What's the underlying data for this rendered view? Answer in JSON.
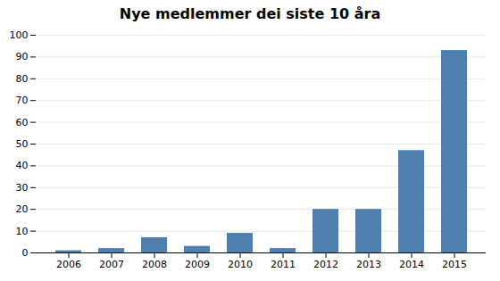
{
  "chart_data": {
    "type": "bar",
    "title": "Nye medlemmer dei siste 10 åra",
    "categories": [
      "2006",
      "2007",
      "2008",
      "2009",
      "2010",
      "2011",
      "2012",
      "2013",
      "2014",
      "2015"
    ],
    "values": [
      1,
      2,
      7,
      3,
      9,
      2,
      20,
      20,
      47,
      93
    ],
    "color": "#4e7fae",
    "ylim": [
      0,
      100
    ],
    "yticks": [
      0,
      10,
      20,
      30,
      40,
      50,
      60,
      70,
      80,
      90,
      100
    ],
    "grid": true
  }
}
